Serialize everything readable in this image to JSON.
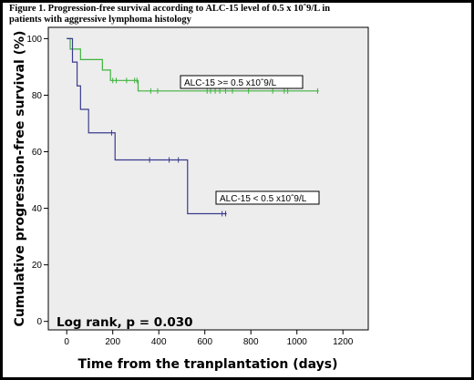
{
  "figure": {
    "title_line1": "Figure 1. Progression-free survival according to ALC-15 level of 0.5 x 10ˆ9/L in",
    "title_line2": "patients with aggressive lymphoma histology",
    "annotation": "Log rank, p = 0.030"
  },
  "colors": {
    "frame": "#000000",
    "paper": "#ffffff",
    "plot_bg": "#ededed",
    "high_series": "#3fb23f",
    "low_series": "#3b3b8f"
  },
  "chart_data": {
    "type": "line",
    "subtype": "kaplan-meier step curve with censor ticks",
    "title": "Figure 1. Progression-free survival according to ALC-15 level of 0.5 x 10ˆ9/L in patients with aggressive lymphoma histology",
    "xlabel": "Time from the tranplantation (days)",
    "ylabel": "Cumulative progression-free survival (%)",
    "xlim": [
      -80,
      1310
    ],
    "ylim": [
      -3,
      104
    ],
    "xticks": [
      0,
      200,
      400,
      600,
      800,
      1000,
      1200
    ],
    "yticks": [
      0,
      20,
      40,
      60,
      80,
      100
    ],
    "grid": false,
    "series": [
      {
        "name": "ALC-15 >= 0.5 x10ˆ9/L",
        "color": "#3fb23f",
        "steps": [
          [
            0,
            100
          ],
          [
            15,
            96.3
          ],
          [
            60,
            92.6
          ],
          [
            155,
            88.9
          ],
          [
            190,
            85.2
          ],
          [
            310,
            81.5
          ]
        ],
        "end_x": 1095,
        "censored": [
          [
            200,
            85.2
          ],
          [
            215,
            85.2
          ],
          [
            260,
            85.2
          ],
          [
            295,
            85.2
          ],
          [
            305,
            85.2
          ],
          [
            365,
            81.5
          ],
          [
            395,
            81.5
          ],
          [
            610,
            81.5
          ],
          [
            625,
            81.5
          ],
          [
            645,
            81.5
          ],
          [
            665,
            81.5
          ],
          [
            690,
            81.5
          ],
          [
            720,
            81.5
          ],
          [
            790,
            81.5
          ],
          [
            895,
            81.5
          ],
          [
            945,
            81.5
          ],
          [
            960,
            81.5
          ],
          [
            1090,
            81.5
          ]
        ]
      },
      {
        "name": "ALC-15 < 0.5 x10ˆ9/L",
        "color": "#3b3b8f",
        "steps": [
          [
            0,
            100
          ],
          [
            25,
            91.7
          ],
          [
            45,
            83.3
          ],
          [
            60,
            75
          ],
          [
            95,
            66.7
          ],
          [
            210,
            57.1
          ],
          [
            525,
            38.1
          ]
        ],
        "end_x": 695,
        "censored": [
          [
            195,
            66.7
          ],
          [
            360,
            57.1
          ],
          [
            445,
            57.1
          ],
          [
            485,
            57.1
          ],
          [
            675,
            38.1
          ],
          [
            690,
            38.1
          ]
        ]
      }
    ]
  }
}
